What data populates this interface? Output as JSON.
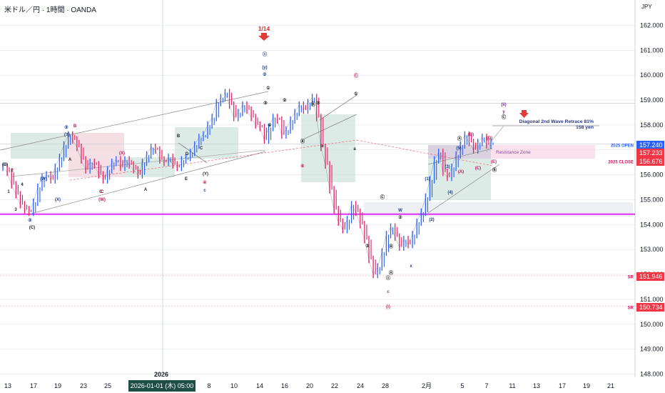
{
  "header": {
    "symbol": "米ドル／円 · 1時間 · OANDA",
    "currency": "JPY"
  },
  "chart_data": {
    "type": "line",
    "xlabel": "",
    "ylabel": "",
    "ylim": [
      147.6,
      162.8
    ],
    "yticks": [
      "148.000",
      "149.000",
      "150.000",
      "151.000",
      "152.000",
      "153.000",
      "154.000",
      "155.000",
      "156.000",
      "157.000",
      "158.000",
      "159.000",
      "160.000",
      "161.000",
      "162.000"
    ],
    "xticks": [
      "13",
      "17",
      "19",
      "23",
      "25",
      "2026",
      "8",
      "10",
      "14",
      "16",
      "20",
      "22",
      "24",
      "28",
      "2月",
      "5",
      "7",
      "11",
      "13",
      "17",
      "19",
      "21"
    ],
    "crosshair_x_label": "2026-01-01 (木)   05:00",
    "year_label": "2026",
    "grid": true,
    "series": [
      {
        "values": [
          156.3,
          156.1,
          155.6,
          155.2,
          154.8,
          154.6,
          154.5,
          154.9,
          155.5,
          155.9,
          156.0,
          155.8,
          156.3,
          156.7,
          157.2,
          157.6,
          157.4,
          157.1,
          156.6,
          156.2,
          156.5,
          156.4,
          156.0,
          155.8,
          156.2,
          156.5,
          156.6,
          156.3,
          156.6,
          156.4,
          156.2,
          156.0,
          156.5,
          156.8,
          157.1,
          157.0,
          156.6,
          156.5,
          156.7,
          156.4,
          156.3,
          156.6,
          156.7,
          156.9,
          157.2,
          157.5,
          157.6,
          158.0,
          158.3,
          158.9,
          159.1,
          159.3,
          158.8,
          158.3,
          158.5,
          158.8,
          158.6,
          158.3,
          158.0,
          157.9,
          157.4,
          157.9,
          158.3,
          158.2,
          157.6,
          157.8,
          158.2,
          158.5,
          158.8,
          158.6,
          158.9,
          159.1,
          158.3,
          157.1,
          156.4,
          155.4,
          154.6,
          154.1,
          153.8,
          154.2,
          154.8,
          154.5,
          154.0,
          153.4,
          152.6,
          152.0,
          152.3,
          152.9,
          153.6,
          153.9,
          153.5,
          153.1,
          153.4,
          153.2,
          153.6,
          154.1,
          154.5,
          155.1,
          155.8,
          156.6,
          156.9,
          156.1,
          155.9,
          156.3,
          156.8,
          157.2,
          157.6,
          157.3,
          157.0,
          157.3,
          157.5,
          157.2,
          157.3
        ]
      }
    ],
    "hlines": [
      {
        "label": "2025 OPEN",
        "value": "157.240",
        "color": "#2962ff"
      },
      {
        "value": "157.233",
        "color": "#f23645"
      },
      {
        "label": "2025 CLOSE",
        "value": "156.676",
        "color": "#f23645"
      },
      {
        "label": "SR",
        "value": "151.946",
        "color": "#f23645"
      },
      {
        "label": "SR",
        "value": "150.734",
        "color": "#f23645"
      }
    ],
    "annotations": {
      "date_marker": "1/14",
      "target_title": "Diagonal 2nd Wave Retrace 81%",
      "target_sub": "158 yen",
      "resistance": "Resistance Zone"
    },
    "wave_labels": [
      "(B)",
      "2",
      "4",
      "1",
      "3",
      "③",
      "(C)",
      "(W)",
      "(X)",
      "③",
      "(Y)",
      "B",
      "A",
      "C",
      "(X)",
      "(W)",
      "C",
      "A",
      "B",
      "D",
      "C",
      "E",
      "(Y)",
      "④",
      "c",
      "(y)",
      "ⓢ",
      "②",
      "①",
      "③",
      "④",
      "②",
      "Ⓐ",
      "⑤",
      "Ⓑ",
      "b",
      "Ⓒ",
      "①",
      "a",
      "④",
      "Ⓒ",
      "W",
      "②",
      "③",
      "Ⓑ",
      "ⓢ",
      "Ⓐ",
      "c",
      "(i)",
      "x",
      "(1)",
      "(3)",
      "(4)",
      "(2)",
      "(5)",
      "(B)",
      "(D)",
      "(A)",
      "(C)",
      "(E)",
      "Ⓐ",
      "Ⓑ",
      "(ii)",
      "y",
      "Ⓒ"
    ],
    "colors": {
      "bull": "#2962ff",
      "bear": "#e91e63",
      "magenta_line": "#e040fb",
      "zone_green": "#cfe3dc",
      "zone_red": "#efd3d8",
      "zone_pink": "#f8bbd0"
    }
  }
}
